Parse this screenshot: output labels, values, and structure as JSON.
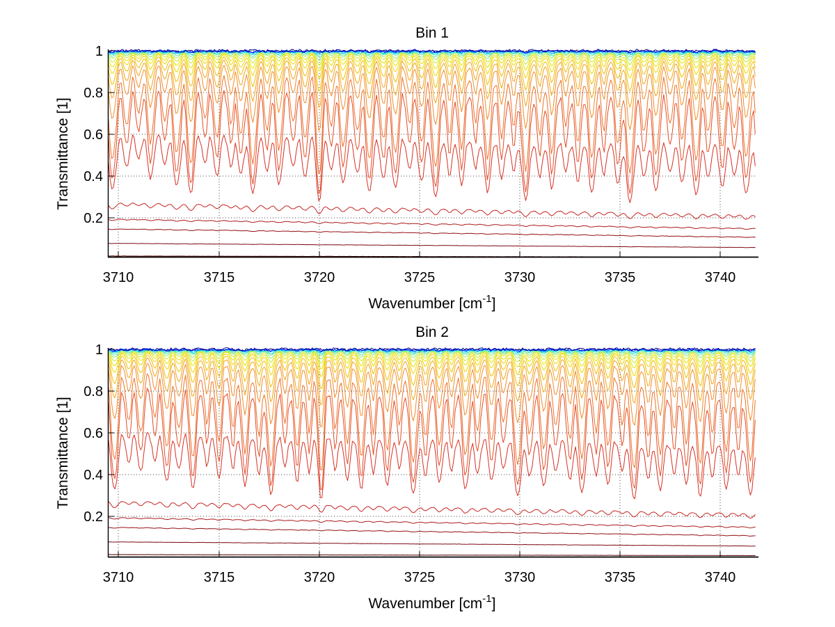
{
  "figure": {
    "background": "#ffffff"
  },
  "chart_data": {
    "type": "line",
    "description": "Two stacked spectral transmittance subplots, families of atmospheric transmittance curves colored with a jet colormap from dark blue (near transmittance 1) to dark red (near 0)",
    "x": {
      "label_prefix": "Wavenumber [cm",
      "label_sup": "-1",
      "label_suffix": "]",
      "lim": [
        3709.5,
        3741.8
      ],
      "ticks": [
        3710,
        3715,
        3720,
        3725,
        3730,
        3735,
        3740
      ],
      "tick_labels": [
        "3710",
        "3715",
        "3720",
        "3725",
        "3730",
        "3735",
        "3740"
      ]
    },
    "y": {
      "label": "Transmittance [1]",
      "lim": [
        0.01,
        1.0
      ],
      "ticks": [
        1,
        0.8,
        0.6,
        0.4,
        0.2
      ],
      "tick_labels": [
        "1",
        "0.8",
        "0.6",
        "0.4",
        "0.2"
      ]
    },
    "grid": true,
    "micro_ripple": 0.055,
    "series": [
      {
        "color": "#000090",
        "level_left": 1.001,
        "level_right": 1.001,
        "line_response": 0.003,
        "noise": 0.007
      },
      {
        "color": "#0008f0",
        "level_left": 1.0,
        "level_right": 1.0,
        "line_response": 0.005,
        "noise": 0.005
      },
      {
        "color": "#0070ff",
        "level_left": 0.9995,
        "level_right": 0.999,
        "line_response": 0.007,
        "noise": 0.004
      },
      {
        "color": "#00c8f0",
        "level_left": 0.999,
        "level_right": 0.998,
        "line_response": 0.01,
        "noise": 0.004
      },
      {
        "color": "#28e0d0",
        "level_left": 0.998,
        "level_right": 0.997,
        "line_response": 0.015,
        "noise": 0.003
      },
      {
        "color": "#60e8a8",
        "level_left": 0.997,
        "level_right": 0.995,
        "line_response": 0.022,
        "noise": 0.003
      },
      {
        "color": "#98e870",
        "level_left": 0.995,
        "level_right": 0.993,
        "line_response": 0.032,
        "noise": 0.002
      },
      {
        "color": "#c8e838",
        "level_left": 0.993,
        "level_right": 0.99,
        "line_response": 0.048,
        "noise": 0.002
      },
      {
        "color": "#e4e400",
        "level_left": 0.99,
        "level_right": 0.986,
        "line_response": 0.07,
        "noise": 0.002
      },
      {
        "color": "#f0d400",
        "level_left": 0.986,
        "level_right": 0.98,
        "line_response": 0.1,
        "noise": 0.002
      },
      {
        "color": "#f0bc00",
        "level_left": 0.978,
        "level_right": 0.97,
        "line_response": 0.15,
        "noise": 0.0015
      },
      {
        "color": "#f0a418",
        "level_left": 0.966,
        "level_right": 0.955,
        "line_response": 0.22,
        "noise": 0.0015
      },
      {
        "color": "#f08c28",
        "level_left": 0.945,
        "level_right": 0.93,
        "line_response": 0.33,
        "noise": 0.001
      },
      {
        "color": "#ee7028",
        "level_left": 0.905,
        "level_right": 0.885,
        "line_response": 0.62,
        "noise": 0.001
      },
      {
        "color": "#e44c24",
        "level_left": 0.84,
        "level_right": 0.8,
        "line_response": 0.76,
        "noise": 0.001
      },
      {
        "color": "#d63024",
        "level_left": 0.62,
        "level_right": 0.56,
        "line_response": 0.6,
        "noise": 0.001
      },
      {
        "color": "#c42420",
        "level_left": 0.275,
        "level_right": 0.215,
        "line_response": 0.12,
        "noise": 0.001
      },
      {
        "color": "#ac1a1c",
        "level_left": 0.195,
        "level_right": 0.15,
        "line_response": 0.038,
        "noise": 0.0008
      },
      {
        "color": "#941014",
        "level_left": 0.148,
        "level_right": 0.108,
        "line_response": 0.026,
        "noise": 0.0008
      },
      {
        "color": "#7c0810",
        "level_left": 0.078,
        "level_right": 0.058,
        "line_response": 0.013,
        "noise": 0.0005
      },
      {
        "color": "#500000",
        "level_left": 0.017,
        "level_right": 0.012,
        "line_response": 0.004,
        "noise": 0.0004
      }
    ],
    "subplots": [
      {
        "title": "Bin 1",
        "seed": 7,
        "absorption_lines": [
          [
            3709.7,
            1.0,
            0.16
          ],
          [
            3710.4,
            0.55,
            0.13
          ],
          [
            3711.0,
            0.4,
            0.12
          ],
          [
            3711.6,
            0.75,
            0.14
          ],
          [
            3712.3,
            0.5,
            0.12
          ],
          [
            3712.9,
            0.9,
            0.15
          ],
          [
            3713.6,
            1.1,
            0.14
          ],
          [
            3714.3,
            0.45,
            0.12
          ],
          [
            3714.9,
            0.7,
            0.13
          ],
          [
            3715.6,
            0.5,
            0.12
          ],
          [
            3716.1,
            0.65,
            0.13
          ],
          [
            3716.7,
            1.05,
            0.15
          ],
          [
            3717.4,
            0.6,
            0.12
          ],
          [
            3718.0,
            0.85,
            0.14
          ],
          [
            3718.7,
            0.5,
            0.12
          ],
          [
            3719.3,
            0.7,
            0.13
          ],
          [
            3720.0,
            1.3,
            0.12
          ],
          [
            3720.6,
            0.55,
            0.12
          ],
          [
            3721.2,
            0.8,
            0.14
          ],
          [
            3721.9,
            0.6,
            0.13
          ],
          [
            3722.5,
            1.0,
            0.14
          ],
          [
            3723.2,
            0.7,
            0.13
          ],
          [
            3723.8,
            0.9,
            0.14
          ],
          [
            3724.5,
            0.5,
            0.12
          ],
          [
            3725.1,
            0.75,
            0.13
          ],
          [
            3725.8,
            1.1,
            0.15
          ],
          [
            3726.5,
            0.6,
            0.12
          ],
          [
            3727.1,
            0.8,
            0.13
          ],
          [
            3727.8,
            0.45,
            0.12
          ],
          [
            3728.4,
            0.95,
            0.14
          ],
          [
            3729.1,
            0.65,
            0.13
          ],
          [
            3729.7,
            0.5,
            0.12
          ],
          [
            3730.3,
            1.15,
            0.15
          ],
          [
            3731.0,
            0.6,
            0.13
          ],
          [
            3731.6,
            0.85,
            0.14
          ],
          [
            3732.3,
            0.5,
            0.12
          ],
          [
            3732.9,
            0.7,
            0.13
          ],
          [
            3733.6,
            0.95,
            0.14
          ],
          [
            3734.2,
            0.55,
            0.12
          ],
          [
            3734.9,
            0.75,
            0.13
          ],
          [
            3735.5,
            1.2,
            0.15
          ],
          [
            3736.2,
            0.6,
            0.12
          ],
          [
            3736.8,
            0.9,
            0.14
          ],
          [
            3737.5,
            0.5,
            0.12
          ],
          [
            3738.1,
            0.7,
            0.13
          ],
          [
            3738.8,
            1.0,
            0.14
          ],
          [
            3739.4,
            0.6,
            0.12
          ],
          [
            3740.1,
            0.8,
            0.13
          ],
          [
            3740.7,
            0.55,
            0.12
          ],
          [
            3741.3,
            0.95,
            0.14
          ],
          [
            3741.9,
            0.7,
            0.13
          ]
        ]
      },
      {
        "title": "Bin 2",
        "seed": 13,
        "absorption_lines": [
          [
            3709.8,
            1.05,
            0.15
          ],
          [
            3710.5,
            0.5,
            0.12
          ],
          [
            3711.1,
            0.65,
            0.13
          ],
          [
            3711.8,
            0.45,
            0.12
          ],
          [
            3712.4,
            0.85,
            0.14
          ],
          [
            3713.0,
            0.6,
            0.13
          ],
          [
            3713.7,
            1.0,
            0.14
          ],
          [
            3714.4,
            0.5,
            0.12
          ],
          [
            3715.0,
            0.75,
            0.13
          ],
          [
            3715.7,
            0.55,
            0.12
          ],
          [
            3716.3,
            0.9,
            0.14
          ],
          [
            3717.0,
            0.65,
            0.13
          ],
          [
            3717.6,
            1.1,
            0.15
          ],
          [
            3718.3,
            0.5,
            0.12
          ],
          [
            3718.9,
            0.8,
            0.13
          ],
          [
            3719.5,
            0.6,
            0.12
          ],
          [
            3720.1,
            1.25,
            0.12
          ],
          [
            3720.8,
            0.55,
            0.12
          ],
          [
            3721.4,
            0.75,
            0.13
          ],
          [
            3722.1,
            0.95,
            0.14
          ],
          [
            3722.7,
            0.6,
            0.12
          ],
          [
            3723.4,
            0.85,
            0.14
          ],
          [
            3724.0,
            0.5,
            0.12
          ],
          [
            3724.7,
            1.05,
            0.15
          ],
          [
            3725.3,
            0.65,
            0.13
          ],
          [
            3726.0,
            0.8,
            0.13
          ],
          [
            3726.6,
            0.55,
            0.12
          ],
          [
            3727.3,
            0.95,
            0.14
          ],
          [
            3727.9,
            0.6,
            0.12
          ],
          [
            3728.6,
            0.75,
            0.13
          ],
          [
            3729.2,
            0.5,
            0.12
          ],
          [
            3729.9,
            1.1,
            0.15
          ],
          [
            3730.5,
            0.65,
            0.13
          ],
          [
            3731.2,
            0.85,
            0.14
          ],
          [
            3731.8,
            0.55,
            0.12
          ],
          [
            3732.5,
            0.7,
            0.13
          ],
          [
            3733.1,
            1.0,
            0.14
          ],
          [
            3733.8,
            0.6,
            0.12
          ],
          [
            3734.4,
            0.8,
            0.13
          ],
          [
            3735.1,
            0.5,
            0.12
          ],
          [
            3735.7,
            1.15,
            0.15
          ],
          [
            3736.4,
            0.65,
            0.13
          ],
          [
            3737.0,
            0.9,
            0.14
          ],
          [
            3737.7,
            0.55,
            0.12
          ],
          [
            3738.3,
            0.75,
            0.13
          ],
          [
            3739.0,
            1.05,
            0.14
          ],
          [
            3739.6,
            0.6,
            0.12
          ],
          [
            3740.3,
            0.85,
            0.13
          ],
          [
            3740.9,
            0.55,
            0.12
          ],
          [
            3741.5,
            1.0,
            0.14
          ]
        ]
      }
    ]
  }
}
